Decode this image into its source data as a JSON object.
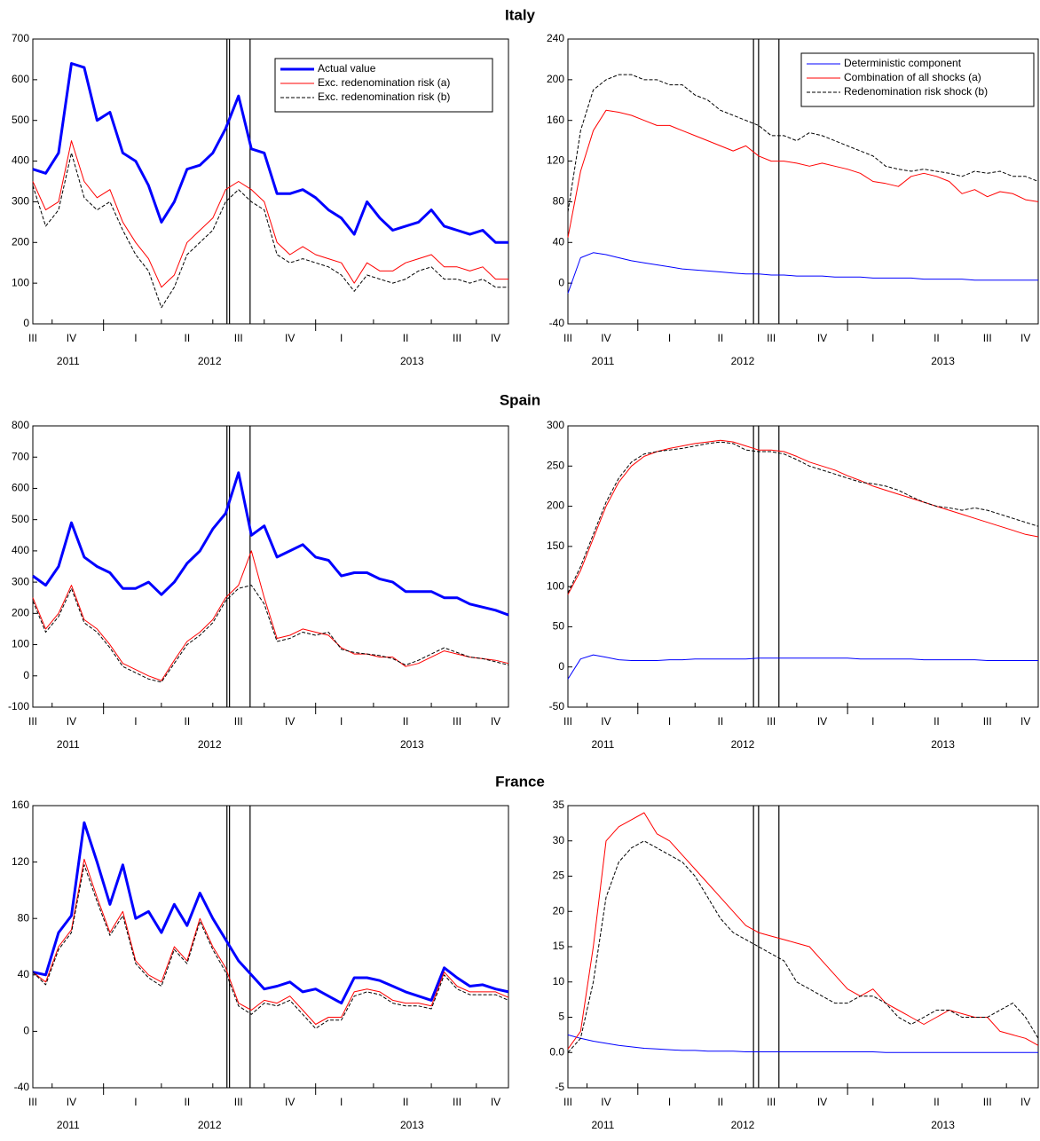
{
  "chart_data": [
    {
      "type": "line",
      "title": "Italy",
      "legend": "upper right",
      "categories": [
        "III",
        null,
        null,
        "IV",
        null,
        null,
        null,
        null,
        "I",
        null,
        null,
        null,
        "II",
        null,
        null,
        null,
        "III",
        null,
        null,
        null,
        "IV",
        null,
        null,
        null,
        "I",
        null,
        null,
        null,
        null,
        "II",
        null,
        null,
        null,
        "III",
        null,
        null,
        "IV",
        null
      ],
      "years": [
        "2011",
        "2012",
        "2013"
      ],
      "ylim": [
        0,
        700
      ],
      "yticks": [
        0,
        100,
        200,
        300,
        400,
        500,
        600,
        700
      ],
      "vlines": [
        15.1,
        15.3,
        16.9
      ],
      "series": [
        {
          "name": "Actual value",
          "color": "#0000ff",
          "width": 3,
          "dash": false,
          "values": [
            380,
            370,
            420,
            640,
            630,
            500,
            520,
            420,
            400,
            340,
            250,
            300,
            380,
            390,
            420,
            480,
            560,
            430,
            420,
            320,
            320,
            330,
            310,
            280,
            260,
            220,
            300,
            260,
            230,
            240,
            250,
            280,
            240,
            230,
            220,
            230,
            200,
            200
          ]
        },
        {
          "name": "Exc. redenomination risk (a)",
          "color": "#ff0000",
          "width": 1,
          "dash": false,
          "values": [
            350,
            280,
            300,
            450,
            350,
            310,
            330,
            250,
            200,
            160,
            90,
            120,
            200,
            230,
            260,
            330,
            350,
            330,
            300,
            200,
            170,
            190,
            170,
            160,
            150,
            100,
            150,
            130,
            130,
            150,
            160,
            170,
            140,
            140,
            130,
            140,
            110,
            110
          ]
        },
        {
          "name": "Exc. redenomination risk (b)",
          "color": "#000000",
          "width": 1,
          "dash": true,
          "values": [
            340,
            240,
            280,
            420,
            310,
            280,
            300,
            230,
            170,
            130,
            40,
            90,
            170,
            200,
            230,
            300,
            330,
            300,
            280,
            170,
            150,
            160,
            150,
            140,
            120,
            80,
            120,
            110,
            100,
            110,
            130,
            140,
            110,
            110,
            100,
            110,
            90,
            90
          ]
        }
      ]
    },
    {
      "type": "line",
      "legend": "upper right",
      "categories": [
        "III",
        null,
        null,
        "IV",
        null,
        null,
        null,
        null,
        "I",
        null,
        null,
        null,
        "II",
        null,
        null,
        null,
        "III",
        null,
        null,
        null,
        "IV",
        null,
        null,
        null,
        "I",
        null,
        null,
        null,
        null,
        "II",
        null,
        null,
        null,
        "III",
        null,
        null,
        "IV",
        null
      ],
      "years": [
        "2011",
        "2012",
        "2013"
      ],
      "ylim": [
        -40,
        240
      ],
      "yticks": [
        -40,
        0,
        40,
        80,
        120,
        160,
        200,
        240
      ],
      "vlines": [
        14.6,
        15.0,
        16.6
      ],
      "series": [
        {
          "name": "Deterministic component",
          "color": "#0000ff",
          "width": 1,
          "dash": false,
          "values": [
            -10,
            25,
            30,
            28,
            25,
            22,
            20,
            18,
            16,
            14,
            13,
            12,
            11,
            10,
            9,
            9,
            8,
            8,
            7,
            7,
            7,
            6,
            6,
            6,
            5,
            5,
            5,
            5,
            4,
            4,
            4,
            4,
            3,
            3,
            3,
            3,
            3,
            3
          ]
        },
        {
          "name": "Combination of all shocks (a)",
          "color": "#ff0000",
          "width": 1,
          "dash": false,
          "values": [
            45,
            110,
            150,
            170,
            168,
            165,
            160,
            155,
            155,
            150,
            145,
            140,
            135,
            130,
            135,
            125,
            120,
            120,
            118,
            115,
            118,
            115,
            112,
            108,
            100,
            98,
            95,
            105,
            108,
            105,
            100,
            88,
            92,
            85,
            90,
            88,
            82,
            80
          ]
        },
        {
          "name": "Redenomination risk shock (b)",
          "color": "#000000",
          "width": 1,
          "dash": true,
          "values": [
            70,
            150,
            190,
            200,
            205,
            205,
            200,
            200,
            195,
            195,
            185,
            180,
            170,
            165,
            160,
            155,
            145,
            145,
            140,
            148,
            145,
            140,
            135,
            130,
            125,
            115,
            112,
            110,
            112,
            110,
            108,
            105,
            110,
            108,
            110,
            105,
            105,
            100
          ]
        }
      ]
    },
    {
      "type": "line",
      "title": "Spain",
      "categories": [
        "III",
        null,
        null,
        "IV",
        null,
        null,
        null,
        null,
        "I",
        null,
        null,
        null,
        "II",
        null,
        null,
        null,
        "III",
        null,
        null,
        null,
        "IV",
        null,
        null,
        null,
        "I",
        null,
        null,
        null,
        null,
        "II",
        null,
        null,
        null,
        "III",
        null,
        null,
        "IV",
        null
      ],
      "years": [
        "2011",
        "2012",
        "2013"
      ],
      "ylim": [
        -100,
        800
      ],
      "yticks": [
        -100,
        0,
        100,
        200,
        300,
        400,
        500,
        600,
        700,
        800
      ],
      "vlines": [
        15.1,
        15.3,
        16.9
      ],
      "series": [
        {
          "color": "#0000ff",
          "width": 3,
          "dash": false,
          "values": [
            320,
            290,
            350,
            490,
            380,
            350,
            330,
            280,
            280,
            300,
            260,
            300,
            360,
            400,
            470,
            520,
            650,
            450,
            480,
            380,
            400,
            420,
            380,
            370,
            320,
            330,
            330,
            310,
            300,
            270,
            270,
            270,
            250,
            250,
            230,
            220,
            210,
            195
          ]
        },
        {
          "color": "#ff0000",
          "width": 1,
          "dash": false,
          "values": [
            250,
            150,
            200,
            290,
            180,
            150,
            100,
            40,
            20,
            0,
            -15,
            50,
            110,
            140,
            180,
            250,
            290,
            400,
            250,
            120,
            130,
            150,
            140,
            130,
            90,
            70,
            70,
            60,
            60,
            30,
            40,
            60,
            80,
            70,
            60,
            55,
            50,
            40
          ]
        },
        {
          "color": "#000000",
          "width": 1,
          "dash": true,
          "values": [
            240,
            140,
            190,
            280,
            170,
            140,
            90,
            30,
            10,
            -10,
            -20,
            40,
            100,
            130,
            170,
            240,
            280,
            290,
            230,
            110,
            120,
            140,
            130,
            140,
            85,
            75,
            70,
            65,
            55,
            35,
            50,
            70,
            90,
            75,
            60,
            55,
            45,
            35
          ]
        }
      ]
    },
    {
      "type": "line",
      "categories": [
        "III",
        null,
        null,
        "IV",
        null,
        null,
        null,
        null,
        "I",
        null,
        null,
        null,
        "II",
        null,
        null,
        null,
        "III",
        null,
        null,
        null,
        "IV",
        null,
        null,
        null,
        "I",
        null,
        null,
        null,
        null,
        "II",
        null,
        null,
        null,
        "III",
        null,
        null,
        "IV",
        null
      ],
      "years": [
        "2011",
        "2012",
        "2013"
      ],
      "ylim": [
        -50,
        300
      ],
      "yticks": [
        -50,
        0,
        50,
        100,
        150,
        200,
        250,
        300
      ],
      "vlines": [
        14.6,
        15.0,
        16.6
      ],
      "series": [
        {
          "color": "#0000ff",
          "width": 1,
          "dash": false,
          "values": [
            -15,
            10,
            15,
            12,
            9,
            8,
            8,
            8,
            9,
            9,
            10,
            10,
            10,
            10,
            10,
            11,
            11,
            11,
            11,
            11,
            11,
            11,
            11,
            10,
            10,
            10,
            10,
            10,
            9,
            9,
            9,
            9,
            9,
            8,
            8,
            8,
            8,
            8
          ]
        },
        {
          "color": "#ff0000",
          "width": 1,
          "dash": false,
          "values": [
            90,
            120,
            160,
            200,
            230,
            250,
            262,
            268,
            272,
            275,
            278,
            280,
            282,
            280,
            275,
            270,
            270,
            268,
            262,
            255,
            250,
            245,
            238,
            232,
            225,
            220,
            215,
            210,
            205,
            200,
            195,
            190,
            185,
            180,
            175,
            170,
            165,
            162
          ]
        },
        {
          "color": "#000000",
          "width": 1,
          "dash": true,
          "values": [
            92,
            125,
            165,
            205,
            235,
            255,
            265,
            268,
            270,
            272,
            275,
            278,
            280,
            278,
            270,
            268,
            268,
            265,
            258,
            250,
            245,
            240,
            235,
            230,
            228,
            225,
            220,
            212,
            205,
            200,
            198,
            195,
            198,
            195,
            190,
            185,
            180,
            175
          ]
        }
      ]
    },
    {
      "type": "line",
      "title": "France",
      "categories": [
        "III",
        null,
        null,
        "IV",
        null,
        null,
        null,
        null,
        "I",
        null,
        null,
        null,
        "II",
        null,
        null,
        null,
        "III",
        null,
        null,
        null,
        "IV",
        null,
        null,
        null,
        "I",
        null,
        null,
        null,
        null,
        "II",
        null,
        null,
        null,
        "III",
        null,
        null,
        "IV",
        null
      ],
      "years": [
        "2011",
        "2012",
        "2013"
      ],
      "ylim": [
        -40,
        160
      ],
      "yticks": [
        -40,
        0,
        40,
        80,
        120,
        160
      ],
      "vlines": [
        15.1,
        15.3,
        16.9
      ],
      "series": [
        {
          "color": "#0000ff",
          "width": 3,
          "dash": false,
          "values": [
            42,
            40,
            70,
            82,
            148,
            120,
            90,
            118,
            80,
            85,
            70,
            90,
            75,
            98,
            80,
            65,
            50,
            40,
            30,
            32,
            35,
            28,
            30,
            25,
            20,
            38,
            38,
            36,
            32,
            28,
            25,
            22,
            45,
            38,
            32,
            33,
            30,
            28
          ]
        },
        {
          "color": "#ff0000",
          "width": 1,
          "dash": false,
          "values": [
            42,
            35,
            60,
            72,
            122,
            95,
            70,
            85,
            50,
            40,
            35,
            60,
            50,
            80,
            60,
            45,
            20,
            15,
            22,
            20,
            25,
            15,
            5,
            10,
            10,
            28,
            30,
            28,
            22,
            20,
            20,
            18,
            42,
            32,
            28,
            28,
            28,
            24
          ]
        },
        {
          "color": "#000000",
          "width": 1,
          "dash": true,
          "values": [
            42,
            33,
            58,
            70,
            118,
            92,
            68,
            82,
            48,
            38,
            32,
            58,
            48,
            78,
            58,
            42,
            18,
            12,
            20,
            18,
            22,
            12,
            2,
            8,
            8,
            25,
            28,
            26,
            20,
            18,
            18,
            16,
            40,
            30,
            26,
            26,
            26,
            22
          ]
        }
      ]
    },
    {
      "type": "line",
      "categories": [
        "III",
        null,
        null,
        "IV",
        null,
        null,
        null,
        null,
        "I",
        null,
        null,
        null,
        "II",
        null,
        null,
        null,
        "III",
        null,
        null,
        null,
        "IV",
        null,
        null,
        null,
        "I",
        null,
        null,
        null,
        null,
        "II",
        null,
        null,
        null,
        "III",
        null,
        null,
        "IV",
        null
      ],
      "years": [
        "2011",
        "2012",
        "2013"
      ],
      "ylim": [
        -5,
        35
      ],
      "yticks": [
        -5,
        {
          "value": 0,
          "label": "0.0"
        },
        5,
        10,
        15,
        20,
        25,
        30,
        35
      ],
      "vlines": [
        14.6,
        15.0,
        16.6
      ],
      "series": [
        {
          "color": "#0000ff",
          "width": 1,
          "dash": false,
          "values": [
            2.5,
            2,
            1.6,
            1.3,
            1,
            0.8,
            0.6,
            0.5,
            0.4,
            0.3,
            0.3,
            0.2,
            0.2,
            0.2,
            0.1,
            0.1,
            0.1,
            0.1,
            0.1,
            0.1,
            0.1,
            0.1,
            0.1,
            0.1,
            0.1,
            0,
            0,
            0,
            0,
            0,
            0,
            0,
            0,
            0,
            0,
            0,
            0,
            0
          ]
        },
        {
          "color": "#ff0000",
          "width": 1,
          "dash": false,
          "values": [
            0.5,
            3,
            15,
            30,
            32,
            33,
            34,
            31,
            30,
            28,
            26,
            24,
            22,
            20,
            18,
            17,
            16.5,
            16,
            15.5,
            15,
            13,
            11,
            9,
            8,
            9,
            7,
            6,
            5,
            4,
            5,
            6,
            5.5,
            5,
            5,
            3,
            2.5,
            2,
            1
          ]
        },
        {
          "color": "#000000",
          "width": 1,
          "dash": true,
          "values": [
            0,
            2,
            10,
            22,
            27,
            29,
            30,
            29,
            28,
            27,
            25,
            22,
            19,
            17,
            16,
            15,
            14,
            13,
            10,
            9,
            8,
            7,
            7,
            8,
            8,
            7,
            5,
            4,
            5,
            6,
            6,
            5,
            5,
            5,
            6,
            7,
            5,
            2
          ]
        }
      ]
    }
  ]
}
